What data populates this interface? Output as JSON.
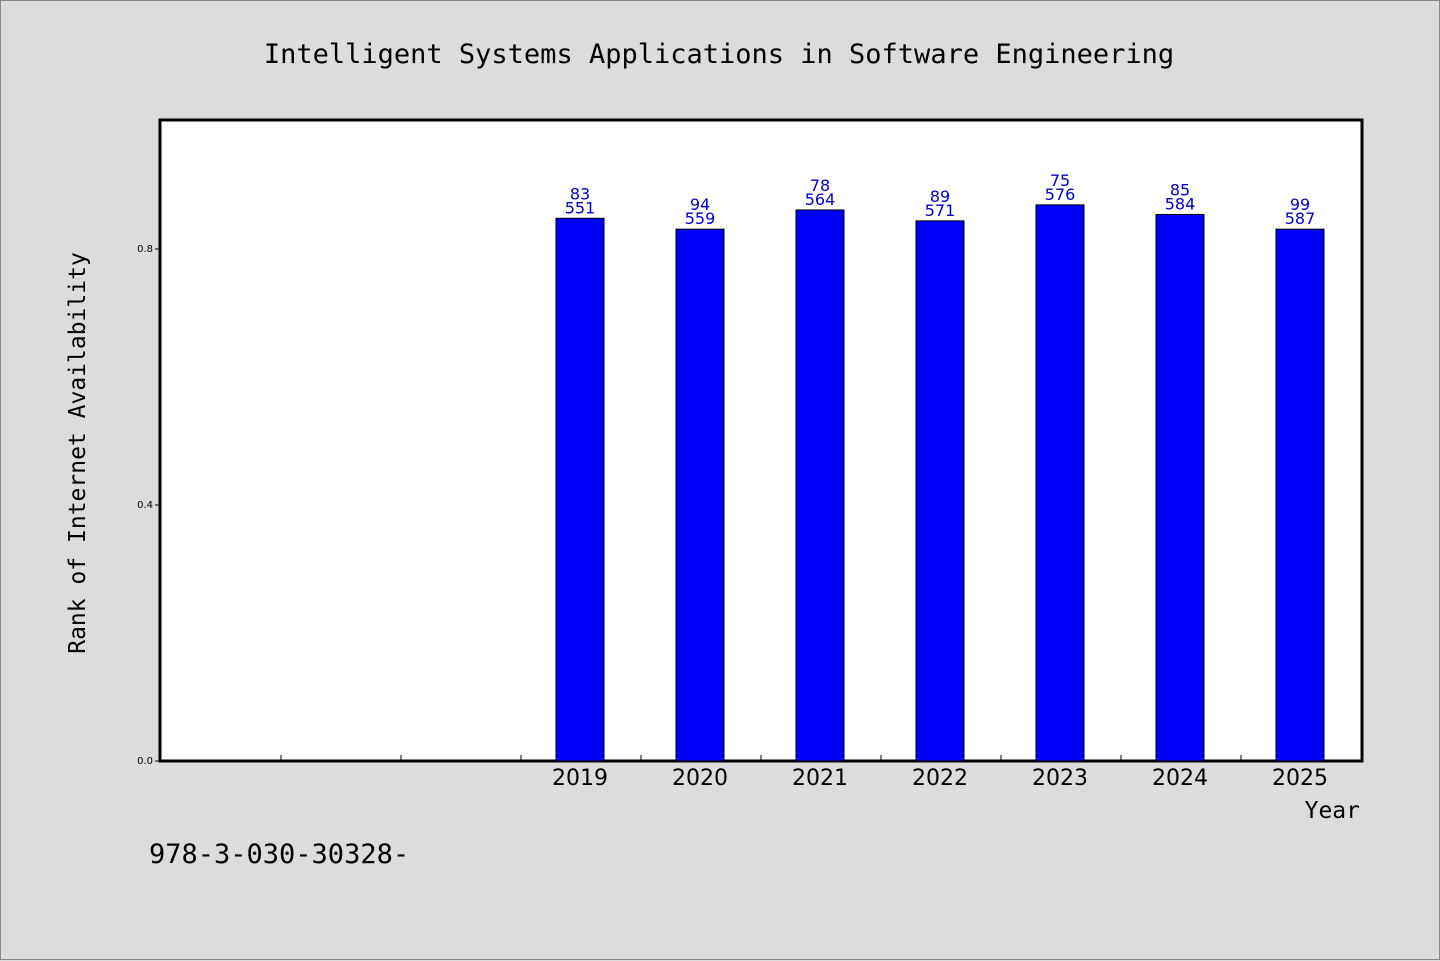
{
  "footer_text": "978-3-030-30328-",
  "chart_data": {
    "type": "bar",
    "title": "Intelligent Systems Applications in Software Engineering",
    "xlabel": "Year",
    "ylabel": "Rank of Internet Availability",
    "categories": [
      "",
      "",
      "",
      "2019",
      "2020",
      "2021",
      "2022",
      "2023",
      "2024",
      "2025"
    ],
    "values": [
      null,
      null,
      null,
      0.848,
      0.831,
      0.861,
      0.844,
      0.869,
      0.854,
      0.831
    ],
    "data_labels": [
      null,
      null,
      null,
      [
        "83",
        "551"
      ],
      [
        "94",
        "559"
      ],
      [
        "78",
        "564"
      ],
      [
        "89",
        "571"
      ],
      [
        "75",
        "576"
      ],
      [
        "85",
        "584"
      ],
      [
        "99",
        "587"
      ]
    ],
    "yticks": [
      0.0,
      0.4,
      0.8
    ],
    "ytick_labels": [
      "0.0",
      "0.4",
      "0.8"
    ],
    "ylim": [
      0,
      1.0
    ],
    "bar_color": "#0000ff",
    "label_color": "#0000cc",
    "grid": false,
    "legend": "none"
  }
}
